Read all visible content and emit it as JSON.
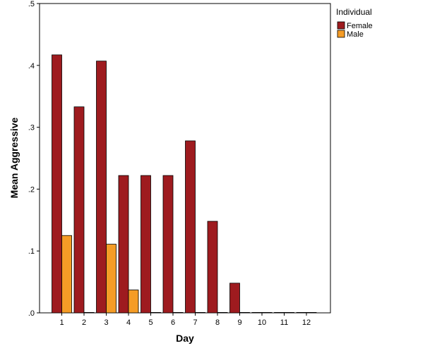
{
  "chart_data": {
    "type": "bar",
    "xlabel": "Day",
    "ylabel": "Mean Aggressive",
    "categories": [
      "1",
      "2",
      "3",
      "4",
      "5",
      "6",
      "7",
      "8",
      "9",
      "10",
      "11",
      "12"
    ],
    "series": [
      {
        "name": "Female",
        "color": "#9e1b1f",
        "values": [
          0.417,
          0.333,
          0.407,
          0.222,
          0.222,
          0.222,
          0.278,
          0.148,
          0.048,
          0,
          0,
          0
        ]
      },
      {
        "name": "Male",
        "color": "#f59c26",
        "values": [
          0.125,
          0,
          0.111,
          0.037,
          0,
          0,
          0,
          0,
          0,
          0,
          0,
          0
        ]
      }
    ],
    "ylim": [
      0,
      0.5
    ],
    "yticks": [
      0,
      0.1,
      0.2,
      0.3,
      0.4,
      0.5
    ],
    "ytick_labels": [
      ".0",
      ".1",
      ".2",
      ".3",
      ".4",
      ".5"
    ],
    "legend": {
      "title": "Individual",
      "position": "right"
    },
    "grid": false
  }
}
